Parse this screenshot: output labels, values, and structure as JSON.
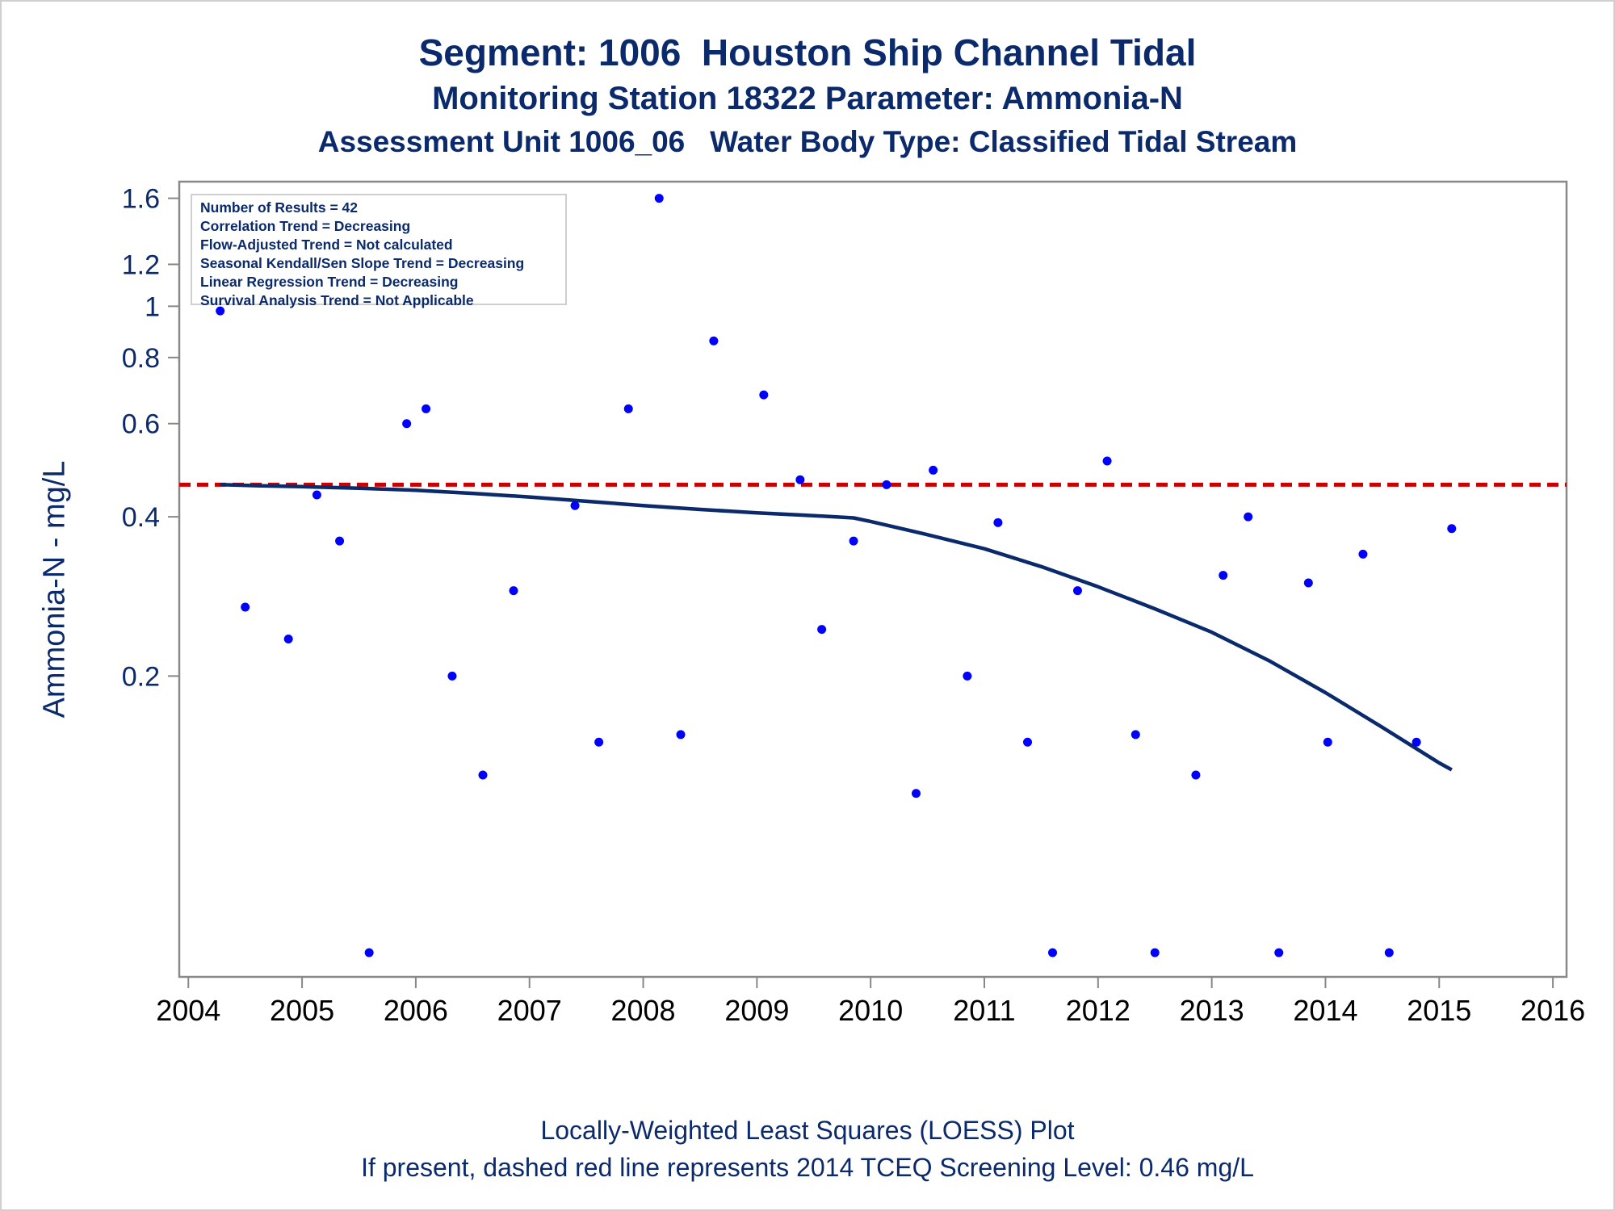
{
  "titles": {
    "line1": "Segment: 1006  Houston Ship Channel Tidal",
    "line2": "Monitoring Station 18322 Parameter: Ammonia-N",
    "line3": "Assessment Unit 1006_06   Water Body Type: Classified Tidal Stream"
  },
  "footer": {
    "line1": "Locally-Weighted Least Squares (LOESS) Plot",
    "line2": "If present, dashed red line represents 2014 TCEQ Screening Level: 0.46 mg/L"
  },
  "info_box": [
    "Number of Results = 42",
    "Correlation Trend = Decreasing",
    "Flow-Adjusted Trend = Not calculated",
    "Seasonal Kendall/Sen Slope Trend = Decreasing",
    "Linear Regression Trend = Decreasing",
    "Survival Analysis Trend = Not Applicable"
  ],
  "colors": {
    "text": "#0b2a6b",
    "points": "#0000ff",
    "loess": "#0b2a6b",
    "screening": "#cc0000",
    "axis": "#888888"
  },
  "chart_data": {
    "type": "scatter",
    "title": "Segment: 1006  Houston Ship Channel Tidal",
    "xlabel": "",
    "ylabel": "Ammonia-N - mg/L",
    "y_scale": "log",
    "xlim": [
      2003.92,
      2016.12
    ],
    "ylim": [
      0.054,
      1.72
    ],
    "x_ticks": [
      2004,
      2005,
      2006,
      2007,
      2008,
      2009,
      2010,
      2011,
      2012,
      2013,
      2014,
      2015,
      2016
    ],
    "x_tick_labels": [
      "2004",
      "2005",
      "2006",
      "2007",
      "2008",
      "2009",
      "2010",
      "2011",
      "2012",
      "2013",
      "2014",
      "2015",
      "2016"
    ],
    "y_ticks": [
      0.2,
      0.4,
      0.6,
      0.8,
      1.0,
      1.2,
      1.6
    ],
    "y_tick_labels": [
      "0.2",
      "0.4",
      "0.6",
      "0.8",
      "1",
      "1.2",
      "1.6"
    ],
    "grid": false,
    "series": [
      {
        "type": "scatter",
        "x": [
          2004.28,
          2004.5,
          2004.88,
          2005.13,
          2005.33,
          2005.59,
          2005.92,
          2006.09,
          2006.32,
          2006.59,
          2006.86,
          2007.4,
          2007.61,
          2007.87,
          2008.14,
          2008.33,
          2008.62,
          2009.06,
          2009.38,
          2009.57,
          2009.85,
          2010.14,
          2010.4,
          2010.55,
          2010.85,
          2011.12,
          2011.38,
          2011.6,
          2011.82,
          2012.08,
          2012.33,
          2012.5,
          2012.86,
          2013.1,
          2013.32,
          2013.59,
          2013.85,
          2014.02,
          2014.33,
          2014.56,
          2014.8,
          2015.11
        ],
        "y": [
          0.98,
          0.27,
          0.235,
          0.44,
          0.36,
          0.06,
          0.6,
          0.64,
          0.2,
          0.13,
          0.29,
          0.42,
          0.15,
          0.64,
          1.6,
          0.155,
          0.86,
          0.68,
          0.47,
          0.245,
          0.36,
          0.46,
          0.12,
          0.49,
          0.2,
          0.39,
          0.15,
          0.06,
          0.29,
          0.51,
          0.155,
          0.06,
          0.13,
          0.31,
          0.4,
          0.06,
          0.3,
          0.15,
          0.34,
          0.06,
          0.15,
          0.38
        ]
      },
      {
        "type": "line",
        "x": [
          2004.28,
          2004.6,
          2005.0,
          2005.5,
          2006.0,
          2006.5,
          2007.0,
          2007.5,
          2008.0,
          2008.5,
          2009.0,
          2009.5,
          2009.85,
          2010.0,
          2010.5,
          2011.0,
          2011.5,
          2012.0,
          2012.5,
          2013.0,
          2013.5,
          2014.0,
          2014.5,
          2015.0,
          2015.11
        ],
        "y": [
          0.46,
          0.458,
          0.456,
          0.453,
          0.449,
          0.443,
          0.436,
          0.428,
          0.42,
          0.413,
          0.407,
          0.402,
          0.398,
          0.392,
          0.37,
          0.348,
          0.322,
          0.295,
          0.268,
          0.242,
          0.214,
          0.186,
          0.16,
          0.137,
          0.133
        ]
      },
      {
        "type": "reference-line",
        "y": 0.46
      }
    ]
  }
}
